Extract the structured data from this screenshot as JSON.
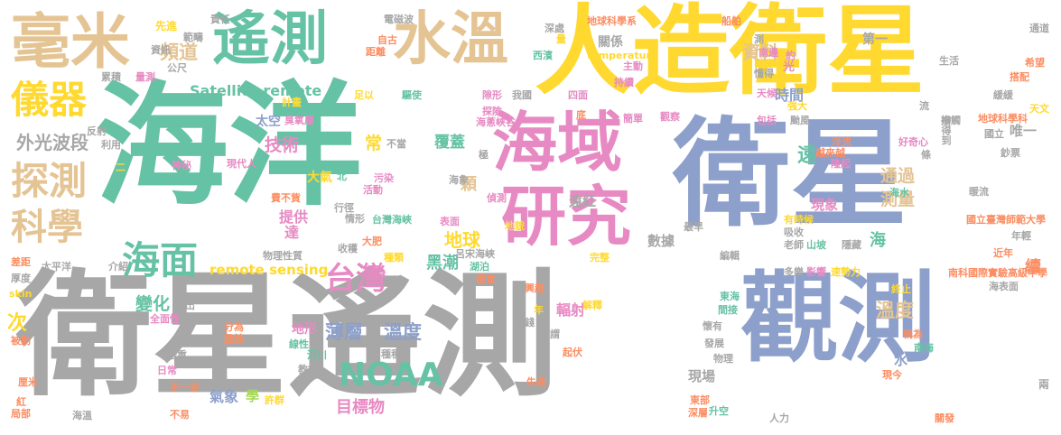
{
  "colors": {
    "gray": "#a7a7a7",
    "teal": "#66c2a5",
    "blue": "#8da0cb",
    "yellow": "#ffd92f",
    "pink": "#e78ac3",
    "orange": "#fc8d62",
    "tan": "#e5c494",
    "green": "#a6d854"
  },
  "words": [
    {
      "text": "海洋",
      "color": "teal"
    },
    {
      "text": "衛星遙測",
      "color": "gray"
    },
    {
      "text": "衛星",
      "color": "blue"
    },
    {
      "text": "人造衛星",
      "color": "yellow"
    },
    {
      "text": "觀測",
      "color": "blue"
    },
    {
      "text": "海域",
      "color": "pink"
    },
    {
      "text": "研究",
      "color": "pink"
    },
    {
      "text": "毫米",
      "color": "tan"
    },
    {
      "text": "遙測",
      "color": "teal"
    },
    {
      "text": "水溫",
      "color": "tan"
    },
    {
      "text": "探測",
      "color": "tan"
    },
    {
      "text": "儀器",
      "color": "yellow"
    },
    {
      "text": "科學",
      "color": "tan"
    },
    {
      "text": "海面",
      "color": "teal"
    },
    {
      "text": "台灣",
      "color": "pink"
    },
    {
      "text": "NOAA",
      "color": "teal"
    },
    {
      "text": "Satellite remote",
      "color": "teal"
    },
    {
      "text": "remote sensing",
      "color": "yellow"
    },
    {
      "text": "外光波段",
      "color": "gray"
    },
    {
      "text": "頻道",
      "color": "tan"
    },
    {
      "text": "資料",
      "color": "tan"
    },
    {
      "text": "技術",
      "color": "pink"
    },
    {
      "text": "薄層",
      "color": "blue"
    },
    {
      "text": "溫度",
      "color": "blue"
    },
    {
      "text": "變化",
      "color": "teal"
    },
    {
      "text": "地球",
      "color": "yellow"
    },
    {
      "text": "通過",
      "color": "tan"
    },
    {
      "text": "測量",
      "color": "tan"
    },
    {
      "text": "溫度",
      "color": "tan"
    },
    {
      "text": "黑潮",
      "color": "teal"
    },
    {
      "text": "提供",
      "color": "pink"
    },
    {
      "text": "達",
      "color": "pink"
    },
    {
      "text": "時間",
      "color": "blue"
    },
    {
      "text": "遠",
      "color": "teal"
    },
    {
      "text": "常",
      "color": "yellow"
    },
    {
      "text": "覆蓋",
      "color": "teal"
    },
    {
      "text": "顆",
      "color": "tan"
    },
    {
      "text": "氣象",
      "color": "blue"
    },
    {
      "text": "學",
      "color": "green"
    },
    {
      "text": "目標物",
      "color": "pink"
    },
    {
      "text": "現象",
      "color": "pink"
    },
    {
      "text": "數據",
      "color": "gray"
    },
    {
      "text": "輻射",
      "color": "pink"
    },
    {
      "text": "次",
      "color": "yellow"
    },
    {
      "text": "海",
      "color": "teal"
    },
    {
      "text": "續",
      "color": "orange"
    },
    {
      "text": "水",
      "color": "blue"
    },
    {
      "text": "現場",
      "color": "gray"
    },
    {
      "text": "地形",
      "color": "pink"
    },
    {
      "text": "遠紅",
      "color": "gray"
    },
    {
      "text": "大氣",
      "color": "yellow"
    },
    {
      "text": "太空",
      "color": "blue"
    },
    {
      "text": "唯一",
      "color": "gray"
    },
    {
      "text": "第一",
      "color": "gray"
    },
    {
      "text": "光",
      "color": "pink"
    },
    {
      "text": "關係",
      "color": "gray"
    },
    {
      "text": "先進",
      "color": "yellow"
    },
    {
      "text": "責任",
      "color": "gray"
    },
    {
      "text": "電磁波",
      "color": "gray"
    },
    {
      "text": "地球科學系",
      "color": "orange"
    },
    {
      "text": "船舶",
      "color": "orange"
    },
    {
      "text": "範疇",
      "color": "gray"
    },
    {
      "text": "資訊",
      "color": "gray"
    },
    {
      "text": "公尺",
      "color": "gray"
    },
    {
      "text": "自古",
      "color": "orange"
    },
    {
      "text": "距離",
      "color": "orange"
    },
    {
      "text": "深處",
      "color": "gray"
    },
    {
      "text": "量",
      "color": "yellow"
    },
    {
      "text": "西濱",
      "color": "teal"
    },
    {
      "text": "temperature",
      "color": "yellow"
    },
    {
      "text": "主動",
      "color": "pink"
    },
    {
      "text": "持續",
      "color": "pink"
    },
    {
      "text": "簡單",
      "color": "pink"
    },
    {
      "text": "觀察",
      "color": "pink"
    },
    {
      "text": "底",
      "color": "orange"
    },
    {
      "text": "四面",
      "color": "pink"
    },
    {
      "text": "我國",
      "color": "gray"
    },
    {
      "text": "驅使",
      "color": "teal"
    },
    {
      "text": "足以",
      "color": "yellow"
    },
    {
      "text": "累積",
      "color": "gray"
    },
    {
      "text": "量測",
      "color": "pink"
    },
    {
      "text": "反射",
      "color": "gray"
    },
    {
      "text": "利用",
      "color": "gray"
    },
    {
      "text": "二",
      "color": "yellow"
    },
    {
      "text": "神秘",
      "color": "pink"
    },
    {
      "text": "現代人",
      "color": "pink"
    },
    {
      "text": "計畫",
      "color": "yellow"
    },
    {
      "text": "臭氧層",
      "color": "pink"
    },
    {
      "text": "北",
      "color": "teal"
    },
    {
      "text": "污染",
      "color": "pink"
    },
    {
      "text": "活動",
      "color": "pink"
    },
    {
      "text": "費不貲",
      "color": "orange"
    },
    {
      "text": "不當",
      "color": "gray"
    },
    {
      "text": "極",
      "color": "gray"
    },
    {
      "text": "偵測",
      "color": "pink"
    },
    {
      "text": "行徑",
      "color": "gray"
    },
    {
      "text": "情形",
      "color": "gray"
    },
    {
      "text": "台灣海峽",
      "color": "teal"
    },
    {
      "text": "表面",
      "color": "pink"
    },
    {
      "text": "地貌",
      "color": "yellow"
    },
    {
      "text": "大肥",
      "color": "orange"
    },
    {
      "text": "呂宋海峽",
      "color": "gray"
    },
    {
      "text": "湖泊",
      "color": "teal"
    },
    {
      "text": "收穫",
      "color": "gray"
    },
    {
      "text": "種類",
      "color": "yellow"
    },
    {
      "text": "物理性質",
      "color": "gray"
    },
    {
      "text": "介紹",
      "color": "gray"
    },
    {
      "text": "太平洋",
      "color": "gray"
    },
    {
      "text": "差距",
      "color": "orange"
    },
    {
      "text": "厚度",
      "color": "gray"
    },
    {
      "text": "skin",
      "color": "yellow"
    },
    {
      "text": "全面性",
      "color": "pink"
    },
    {
      "text": "放出",
      "color": "gray"
    },
    {
      "text": "被動",
      "color": "orange"
    },
    {
      "text": "倍重",
      "color": "gray"
    },
    {
      "text": "厘米",
      "color": "orange"
    },
    {
      "text": "日常",
      "color": "pink"
    },
    {
      "text": "不一定",
      "color": "orange"
    },
    {
      "text": "紅",
      "color": "orange"
    },
    {
      "text": "局部",
      "color": "orange"
    },
    {
      "text": "海溫",
      "color": "gray"
    },
    {
      "text": "不易",
      "color": "orange"
    },
    {
      "text": "分為",
      "color": "orange"
    },
    {
      "text": "盈餘",
      "color": "orange"
    },
    {
      "text": "線性",
      "color": "teal"
    },
    {
      "text": "教授",
      "color": "gray"
    },
    {
      "text": "河川",
      "color": "teal"
    },
    {
      "text": "種種",
      "color": "gray"
    },
    {
      "text": "許群",
      "color": "yellow"
    },
    {
      "text": "侵食",
      "color": "orange"
    },
    {
      "text": "年",
      "color": "yellow"
    },
    {
      "text": "花錢",
      "color": "gray"
    },
    {
      "text": "解釋",
      "color": "yellow"
    },
    {
      "text": "完整",
      "color": "yellow"
    },
    {
      "text": "興趣",
      "color": "orange"
    },
    {
      "text": "何謂",
      "color": "gray"
    },
    {
      "text": "起伏",
      "color": "orange"
    },
    {
      "text": "失敗",
      "color": "orange"
    },
    {
      "text": "東部",
      "color": "orange"
    },
    {
      "text": "深層",
      "color": "orange"
    },
    {
      "text": "升空",
      "color": "teal"
    },
    {
      "text": "人力",
      "color": "gray"
    },
    {
      "text": "物理",
      "color": "gray"
    },
    {
      "text": "發展",
      "color": "gray"
    },
    {
      "text": "懷有",
      "color": "gray"
    },
    {
      "text": "間接",
      "color": "teal"
    },
    {
      "text": "東海",
      "color": "teal"
    },
    {
      "text": "南海",
      "color": "teal"
    },
    {
      "text": "稱為",
      "color": "orange"
    },
    {
      "text": "現今",
      "color": "orange"
    },
    {
      "text": "關發",
      "color": "orange"
    },
    {
      "text": "編輯",
      "color": "gray"
    },
    {
      "text": "多樂",
      "color": "gray"
    },
    {
      "text": "影響",
      "color": "pink"
    },
    {
      "text": "速勢力",
      "color": "yellow"
    },
    {
      "text": "南科國際實驗高級中學",
      "color": "orange"
    },
    {
      "text": "終止",
      "color": "yellow"
    },
    {
      "text": "海表面",
      "color": "gray"
    },
    {
      "text": "老師",
      "color": "gray"
    },
    {
      "text": "山坡",
      "color": "teal"
    },
    {
      "text": "隱藏",
      "color": "gray"
    },
    {
      "text": "有時候",
      "color": "yellow"
    },
    {
      "text": "吸收",
      "color": "gray"
    },
    {
      "text": "最早",
      "color": "gray"
    },
    {
      "text": "國立臺灣師範大學",
      "color": "orange"
    },
    {
      "text": "年輕",
      "color": "gray"
    },
    {
      "text": "近年",
      "color": "orange"
    },
    {
      "text": "暖流",
      "color": "gray"
    },
    {
      "text": "海水",
      "color": "teal"
    },
    {
      "text": "好奇心",
      "color": "pink"
    },
    {
      "text": "洋流",
      "color": "orange"
    },
    {
      "text": "越來越",
      "color": "orange"
    },
    {
      "text": "隆起",
      "color": "pink"
    },
    {
      "text": "條",
      "color": "gray"
    },
    {
      "text": "鈔票",
      "color": "gray"
    },
    {
      "text": "國立",
      "color": "gray"
    },
    {
      "text": "地球科學科",
      "color": "orange"
    },
    {
      "text": "接觸",
      "color": "gray"
    },
    {
      "text": "颱風",
      "color": "gray"
    },
    {
      "text": "包括",
      "color": "pink"
    },
    {
      "text": "強大",
      "color": "yellow"
    },
    {
      "text": "天候",
      "color": "pink"
    },
    {
      "text": "懂得",
      "color": "gray"
    },
    {
      "text": "約",
      "color": "pink"
    },
    {
      "text": "南邊",
      "color": "pink"
    },
    {
      "text": "測",
      "color": "gray"
    },
    {
      "text": "生活",
      "color": "gray"
    },
    {
      "text": "希望",
      "color": "orange"
    },
    {
      "text": "搭配",
      "color": "orange"
    },
    {
      "text": "緩緩",
      "color": "gray"
    },
    {
      "text": "天文",
      "color": "yellow"
    },
    {
      "text": "流",
      "color": "gray"
    },
    {
      "text": "辦得到",
      "color": "gray"
    },
    {
      "text": "兩",
      "color": "gray"
    },
    {
      "text": "通道",
      "color": "gray"
    },
    {
      "text": "探險",
      "color": "pink"
    },
    {
      "text": "海蔥峽谷",
      "color": "pink"
    },
    {
      "text": "海象",
      "color": "gray"
    },
    {
      "text": "隙形",
      "color": "pink"
    },
    {
      "text": "指",
      "color": "gray"
    }
  ]
}
